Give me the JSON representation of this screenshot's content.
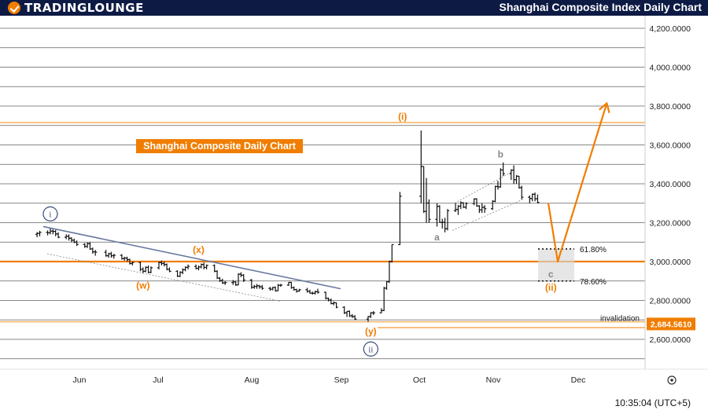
{
  "header": {
    "logo_text": "TRADINGLOUNGE",
    "title": "Shanghai Composite Index Daily Chart"
  },
  "footer": {
    "time": "10:35:04 (UTC+5)"
  },
  "chart_data": {
    "type": "candlestick",
    "title": "Shanghai Composite Daily Chart",
    "x_labels": [
      "Jun",
      "Jul",
      "Aug",
      "Sep",
      "Oct",
      "Nov",
      "Dec"
    ],
    "y_ticks": [
      "4,200.0000",
      "4,000.0000",
      "3,800.0000",
      "3,600.0000",
      "3,400.0000",
      "3,200.0000",
      "3,000.0000",
      "2,800.0000",
      "2,600.0000"
    ],
    "ylim": [
      2480,
      4230
    ],
    "price_tag": "2,684.5610",
    "invalidation_label": "invalidation",
    "fib_levels": [
      {
        "label": "61.80%",
        "value": 3065
      },
      {
        "label": "78.60%",
        "value": 2900
      }
    ],
    "wave_labels": [
      {
        "text": "i",
        "style": "circle",
        "color": "#3a4a7a",
        "date": "May 21",
        "price": 3245
      },
      {
        "text": "(x)",
        "color": "#f07d00",
        "date": "Jul 16",
        "price": 3045
      },
      {
        "text": "(w)",
        "color": "#f07d00",
        "date": "Jun 25",
        "price": 2860
      },
      {
        "text": "(y)",
        "color": "#f07d00",
        "date": "Sep 19",
        "price": 2625
      },
      {
        "text": "ii",
        "style": "circle",
        "color": "#3a4a7a",
        "date": "Sep 19",
        "price": 2550
      },
      {
        "text": "(i)",
        "color": "#f07d00",
        "date": "Oct 1",
        "price": 3730
      },
      {
        "text": "a",
        "color": "#888888",
        "date": "Oct 14",
        "price": 3110
      },
      {
        "text": "b",
        "color": "#888888",
        "date": "Nov 7",
        "price": 3535
      },
      {
        "text": "c",
        "color": "#888888",
        "date": "Nov 26",
        "price": 2920
      },
      {
        "text": "(ii)",
        "color": "#f07d00",
        "date": "Nov 26",
        "price": 2850
      }
    ],
    "ohlc": [
      {
        "date": "May 16",
        "open": 3140,
        "high": 3152,
        "low": 3125,
        "close": 3145
      },
      {
        "date": "May 17",
        "open": 3145,
        "high": 3158,
        "low": 3130,
        "close": 3150
      },
      {
        "date": "May 20",
        "open": 3150,
        "high": 3160,
        "low": 3135,
        "close": 3148
      },
      {
        "date": "May 21",
        "open": 3148,
        "high": 3170,
        "low": 3140,
        "close": 3157
      },
      {
        "date": "May 22",
        "open": 3157,
        "high": 3165,
        "low": 3140,
        "close": 3155
      },
      {
        "date": "May 23",
        "open": 3155,
        "high": 3162,
        "low": 3130,
        "close": 3142
      },
      {
        "date": "May 24",
        "open": 3142,
        "high": 3150,
        "low": 3120,
        "close": 3125
      },
      {
        "date": "May 27",
        "open": 3125,
        "high": 3140,
        "low": 3115,
        "close": 3130
      },
      {
        "date": "May 28",
        "open": 3130,
        "high": 3140,
        "low": 3108,
        "close": 3120
      },
      {
        "date": "May 29",
        "open": 3120,
        "high": 3125,
        "low": 3100,
        "close": 3110
      },
      {
        "date": "May 30",
        "open": 3110,
        "high": 3118,
        "low": 3095,
        "close": 3100
      },
      {
        "date": "May 31",
        "open": 3100,
        "high": 3108,
        "low": 3080,
        "close": 3088
      },
      {
        "date": "Jun 3",
        "open": 3088,
        "high": 3095,
        "low": 3070,
        "close": 3078
      },
      {
        "date": "Jun 4",
        "open": 3078,
        "high": 3098,
        "low": 3070,
        "close": 3092
      },
      {
        "date": "Jun 5",
        "open": 3092,
        "high": 3100,
        "low": 3060,
        "close": 3065
      },
      {
        "date": "Jun 6",
        "open": 3065,
        "high": 3072,
        "low": 3040,
        "close": 3050
      },
      {
        "date": "Jun 7",
        "open": 3050,
        "high": 3060,
        "low": 3030,
        "close": 3048
      },
      {
        "date": "Jun 11",
        "open": 3048,
        "high": 3060,
        "low": 3025,
        "close": 3030
      },
      {
        "date": "Jun 12",
        "open": 3030,
        "high": 3045,
        "low": 3020,
        "close": 3040
      },
      {
        "date": "Jun 13",
        "open": 3040,
        "high": 3050,
        "low": 3020,
        "close": 3030
      },
      {
        "date": "Jun 14",
        "open": 3030,
        "high": 3040,
        "low": 3015,
        "close": 3032
      },
      {
        "date": "Jun 17",
        "open": 3032,
        "high": 3038,
        "low": 3010,
        "close": 3015
      },
      {
        "date": "Jun 18",
        "open": 3015,
        "high": 3025,
        "low": 3005,
        "close": 3018
      },
      {
        "date": "Jun 19",
        "open": 3018,
        "high": 3025,
        "low": 3000,
        "close": 3010
      },
      {
        "date": "Jun 20",
        "open": 3010,
        "high": 3015,
        "low": 2985,
        "close": 2990
      },
      {
        "date": "Jun 21",
        "open": 2990,
        "high": 3000,
        "low": 2980,
        "close": 2995
      },
      {
        "date": "Jun 24",
        "open": 2995,
        "high": 3000,
        "low": 2950,
        "close": 2960
      },
      {
        "date": "Jun 25",
        "open": 2960,
        "high": 2970,
        "low": 2940,
        "close": 2950
      },
      {
        "date": "Jun 26",
        "open": 2950,
        "high": 2975,
        "low": 2945,
        "close": 2970
      },
      {
        "date": "Jun 27",
        "open": 2970,
        "high": 2980,
        "low": 2940,
        "close": 2945
      },
      {
        "date": "Jun 28",
        "open": 2945,
        "high": 2975,
        "low": 2940,
        "close": 2968
      },
      {
        "date": "Jul 1",
        "open": 2968,
        "high": 3000,
        "low": 2960,
        "close": 2995
      },
      {
        "date": "Jul 2",
        "open": 2995,
        "high": 3005,
        "low": 2980,
        "close": 2990
      },
      {
        "date": "Jul 3",
        "open": 2990,
        "high": 3000,
        "low": 2975,
        "close": 2985
      },
      {
        "date": "Jul 4",
        "open": 2985,
        "high": 2990,
        "low": 2955,
        "close": 2960
      },
      {
        "date": "Jul 5",
        "open": 2960,
        "high": 2970,
        "low": 2945,
        "close": 2950
      },
      {
        "date": "Jul 8",
        "open": 2950,
        "high": 2955,
        "low": 2920,
        "close": 2925
      },
      {
        "date": "Jul 9",
        "open": 2925,
        "high": 2950,
        "low": 2920,
        "close": 2945
      },
      {
        "date": "Jul 10",
        "open": 2945,
        "high": 2965,
        "low": 2935,
        "close": 2958
      },
      {
        "date": "Jul 11",
        "open": 2958,
        "high": 2975,
        "low": 2950,
        "close": 2970
      },
      {
        "date": "Jul 12",
        "open": 2970,
        "high": 2985,
        "low": 2960,
        "close": 2975
      },
      {
        "date": "Jul 15",
        "open": 2975,
        "high": 2985,
        "low": 2960,
        "close": 2965
      },
      {
        "date": "Jul 16",
        "open": 2965,
        "high": 2980,
        "low": 2955,
        "close": 2972
      },
      {
        "date": "Jul 17",
        "open": 2972,
        "high": 2990,
        "low": 2965,
        "close": 2985
      },
      {
        "date": "Jul 18",
        "open": 2985,
        "high": 2995,
        "low": 2960,
        "close": 2970
      },
      {
        "date": "Jul 19",
        "open": 2970,
        "high": 2985,
        "low": 2960,
        "close": 2980
      },
      {
        "date": "Jul 22",
        "open": 2980,
        "high": 2985,
        "low": 2945,
        "close": 2950
      },
      {
        "date": "Jul 23",
        "open": 2950,
        "high": 2955,
        "low": 2910,
        "close": 2915
      },
      {
        "date": "Jul 24",
        "open": 2915,
        "high": 2920,
        "low": 2895,
        "close": 2902
      },
      {
        "date": "Jul 25",
        "open": 2902,
        "high": 2912,
        "low": 2885,
        "close": 2890
      },
      {
        "date": "Jul 26",
        "open": 2890,
        "high": 2900,
        "low": 2880,
        "close": 2892
      },
      {
        "date": "Jul 29",
        "open": 2892,
        "high": 2905,
        "low": 2880,
        "close": 2895
      },
      {
        "date": "Jul 30",
        "open": 2895,
        "high": 2900,
        "low": 2875,
        "close": 2880
      },
      {
        "date": "Jul 31",
        "open": 2880,
        "high": 2940,
        "low": 2878,
        "close": 2935
      },
      {
        "date": "Aug 1",
        "open": 2935,
        "high": 2945,
        "low": 2920,
        "close": 2930
      },
      {
        "date": "Aug 2",
        "open": 2930,
        "high": 2935,
        "low": 2895,
        "close": 2905
      },
      {
        "date": "Aug 5",
        "open": 2905,
        "high": 2910,
        "low": 2860,
        "close": 2868
      },
      {
        "date": "Aug 6",
        "open": 2868,
        "high": 2880,
        "low": 2860,
        "close": 2872
      },
      {
        "date": "Aug 7",
        "open": 2872,
        "high": 2885,
        "low": 2860,
        "close": 2875
      },
      {
        "date": "Aug 8",
        "open": 2875,
        "high": 2880,
        "low": 2860,
        "close": 2870
      },
      {
        "date": "Aug 9",
        "open": 2870,
        "high": 2880,
        "low": 2855,
        "close": 2862
      },
      {
        "date": "Aug 12",
        "open": 2862,
        "high": 2870,
        "low": 2850,
        "close": 2858
      },
      {
        "date": "Aug 13",
        "open": 2858,
        "high": 2870,
        "low": 2852,
        "close": 2867
      },
      {
        "date": "Aug 14",
        "open": 2867,
        "high": 2872,
        "low": 2845,
        "close": 2850
      },
      {
        "date": "Aug 15",
        "open": 2850,
        "high": 2885,
        "low": 2848,
        "close": 2878
      },
      {
        "date": "Aug 16",
        "open": 2878,
        "high": 2885,
        "low": 2870,
        "close": 2879
      },
      {
        "date": "Aug 19",
        "open": 2879,
        "high": 2895,
        "low": 2875,
        "close": 2893
      },
      {
        "date": "Aug 20",
        "open": 2893,
        "high": 2895,
        "low": 2860,
        "close": 2866
      },
      {
        "date": "Aug 21",
        "open": 2866,
        "high": 2872,
        "low": 2850,
        "close": 2856
      },
      {
        "date": "Aug 22",
        "open": 2856,
        "high": 2860,
        "low": 2840,
        "close": 2848
      },
      {
        "date": "Aug 23",
        "open": 2848,
        "high": 2860,
        "low": 2845,
        "close": 2855
      },
      {
        "date": "Aug 26",
        "open": 2855,
        "high": 2865,
        "low": 2840,
        "close": 2847
      },
      {
        "date": "Aug 27",
        "open": 2847,
        "high": 2855,
        "low": 2835,
        "close": 2838
      },
      {
        "date": "Aug 28",
        "open": 2838,
        "high": 2845,
        "low": 2830,
        "close": 2837
      },
      {
        "date": "Aug 29",
        "open": 2837,
        "high": 2850,
        "low": 2830,
        "close": 2845
      },
      {
        "date": "Aug 30",
        "open": 2845,
        "high": 2860,
        "low": 2835,
        "close": 2842
      },
      {
        "date": "Sep 2",
        "open": 2842,
        "high": 2845,
        "low": 2805,
        "close": 2811
      },
      {
        "date": "Sep 3",
        "open": 2811,
        "high": 2815,
        "low": 2795,
        "close": 2802
      },
      {
        "date": "Sep 4",
        "open": 2802,
        "high": 2810,
        "low": 2780,
        "close": 2784
      },
      {
        "date": "Sep 5",
        "open": 2784,
        "high": 2795,
        "low": 2775,
        "close": 2788
      },
      {
        "date": "Sep 6",
        "open": 2788,
        "high": 2790,
        "low": 2760,
        "close": 2765
      },
      {
        "date": "Sep 9",
        "open": 2765,
        "high": 2770,
        "low": 2730,
        "close": 2736
      },
      {
        "date": "Sep 10",
        "open": 2736,
        "high": 2745,
        "low": 2715,
        "close": 2744
      },
      {
        "date": "Sep 11",
        "open": 2744,
        "high": 2748,
        "low": 2715,
        "close": 2721
      },
      {
        "date": "Sep 12",
        "open": 2721,
        "high": 2730,
        "low": 2710,
        "close": 2717
      },
      {
        "date": "Sep 13",
        "open": 2717,
        "high": 2725,
        "low": 2700,
        "close": 2704
      },
      {
        "date": "Sep 18",
        "open": 2704,
        "high": 2720,
        "low": 2690,
        "close": 2717
      },
      {
        "date": "Sep 19",
        "open": 2717,
        "high": 2740,
        "low": 2710,
        "close": 2736
      },
      {
        "date": "Sep 20",
        "open": 2736,
        "high": 2745,
        "low": 2725,
        "close": 2736
      },
      {
        "date": "Sep 23",
        "open": 2736,
        "high": 2760,
        "low": 2735,
        "close": 2748
      },
      {
        "date": "Sep 24",
        "open": 2748,
        "high": 2870,
        "low": 2745,
        "close": 2863
      },
      {
        "date": "Sep 25",
        "open": 2863,
        "high": 2900,
        "low": 2855,
        "close": 2896
      },
      {
        "date": "Sep 26",
        "open": 2896,
        "high": 3005,
        "low": 2890,
        "close": 3000
      },
      {
        "date": "Sep 27",
        "open": 3000,
        "high": 3088,
        "low": 2995,
        "close": 3087
      },
      {
        "date": "Sep 30",
        "open": 3087,
        "high": 3358,
        "low": 3085,
        "close": 3336
      },
      {
        "date": "Oct 8",
        "open": 3336,
        "high": 3674,
        "low": 3300,
        "close": 3489
      },
      {
        "date": "Oct 9",
        "open": 3489,
        "high": 3490,
        "low": 3250,
        "close": 3258
      },
      {
        "date": "Oct 10",
        "open": 3258,
        "high": 3430,
        "low": 3200,
        "close": 3301
      },
      {
        "date": "Oct 11",
        "open": 3301,
        "high": 3320,
        "low": 3200,
        "close": 3217
      },
      {
        "date": "Oct 14",
        "open": 3217,
        "high": 3300,
        "low": 3180,
        "close": 3284
      },
      {
        "date": "Oct 15",
        "open": 3284,
        "high": 3290,
        "low": 3200,
        "close": 3201
      },
      {
        "date": "Oct 16",
        "open": 3201,
        "high": 3220,
        "low": 3170,
        "close": 3202
      },
      {
        "date": "Oct 17",
        "open": 3202,
        "high": 3225,
        "low": 3150,
        "close": 3169
      },
      {
        "date": "Oct 18",
        "open": 3169,
        "high": 3270,
        "low": 3160,
        "close": 3262
      },
      {
        "date": "Oct 21",
        "open": 3262,
        "high": 3300,
        "low": 3255,
        "close": 3268
      },
      {
        "date": "Oct 22",
        "open": 3268,
        "high": 3290,
        "low": 3240,
        "close": 3285
      },
      {
        "date": "Oct 23",
        "open": 3285,
        "high": 3310,
        "low": 3270,
        "close": 3302
      },
      {
        "date": "Oct 24",
        "open": 3302,
        "high": 3305,
        "low": 3275,
        "close": 3280
      },
      {
        "date": "Oct 25",
        "open": 3280,
        "high": 3305,
        "low": 3270,
        "close": 3299
      },
      {
        "date": "Oct 28",
        "open": 3299,
        "high": 3325,
        "low": 3290,
        "close": 3322
      },
      {
        "date": "Oct 29",
        "open": 3322,
        "high": 3325,
        "low": 3282,
        "close": 3286
      },
      {
        "date": "Oct 30",
        "open": 3286,
        "high": 3290,
        "low": 3250,
        "close": 3266
      },
      {
        "date": "Oct 31",
        "open": 3266,
        "high": 3300,
        "low": 3250,
        "close": 3279
      },
      {
        "date": "Nov 1",
        "open": 3279,
        "high": 3290,
        "low": 3250,
        "close": 3272
      },
      {
        "date": "Nov 4",
        "open": 3272,
        "high": 3315,
        "low": 3265,
        "close": 3310
      },
      {
        "date": "Nov 5",
        "open": 3310,
        "high": 3390,
        "low": 3305,
        "close": 3386
      },
      {
        "date": "Nov 6",
        "open": 3386,
        "high": 3415,
        "low": 3370,
        "close": 3384
      },
      {
        "date": "Nov 7",
        "open": 3384,
        "high": 3480,
        "low": 3380,
        "close": 3471
      },
      {
        "date": "Nov 8",
        "open": 3471,
        "high": 3510,
        "low": 3440,
        "close": 3452
      },
      {
        "date": "Nov 11",
        "open": 3452,
        "high": 3475,
        "low": 3420,
        "close": 3470
      },
      {
        "date": "Nov 12",
        "open": 3470,
        "high": 3495,
        "low": 3400,
        "close": 3421
      },
      {
        "date": "Nov 13",
        "open": 3421,
        "high": 3445,
        "low": 3400,
        "close": 3439
      },
      {
        "date": "Nov 14",
        "open": 3439,
        "high": 3440,
        "low": 3375,
        "close": 3380
      },
      {
        "date": "Nov 15",
        "open": 3380,
        "high": 3390,
        "low": 3320,
        "close": 3331
      },
      {
        "date": "Nov 18",
        "open": 3331,
        "high": 3340,
        "low": 3300,
        "close": 3324
      },
      {
        "date": "Nov 19",
        "open": 3324,
        "high": 3350,
        "low": 3310,
        "close": 3346
      },
      {
        "date": "Nov 20",
        "open": 3346,
        "high": 3355,
        "low": 3310,
        "close": 3323
      },
      {
        "date": "Nov 21",
        "open": 3323,
        "high": 3345,
        "low": 3300,
        "close": 3304
      }
    ]
  }
}
